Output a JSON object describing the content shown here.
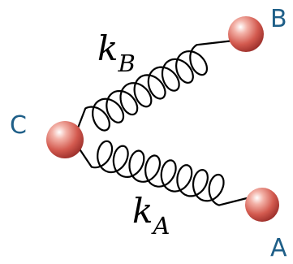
{
  "nodes": {
    "A": {
      "label": "A",
      "color": "#c94040"
    },
    "B": {
      "label": "B",
      "color": "#c94040"
    },
    "C": {
      "label": "C",
      "color": "#c94040"
    }
  },
  "label_color": "#1f5f88",
  "springs": {
    "kB": {
      "symbol": "k",
      "subscript": "B"
    },
    "kA": {
      "symbol": "k",
      "subscript": "A"
    }
  }
}
